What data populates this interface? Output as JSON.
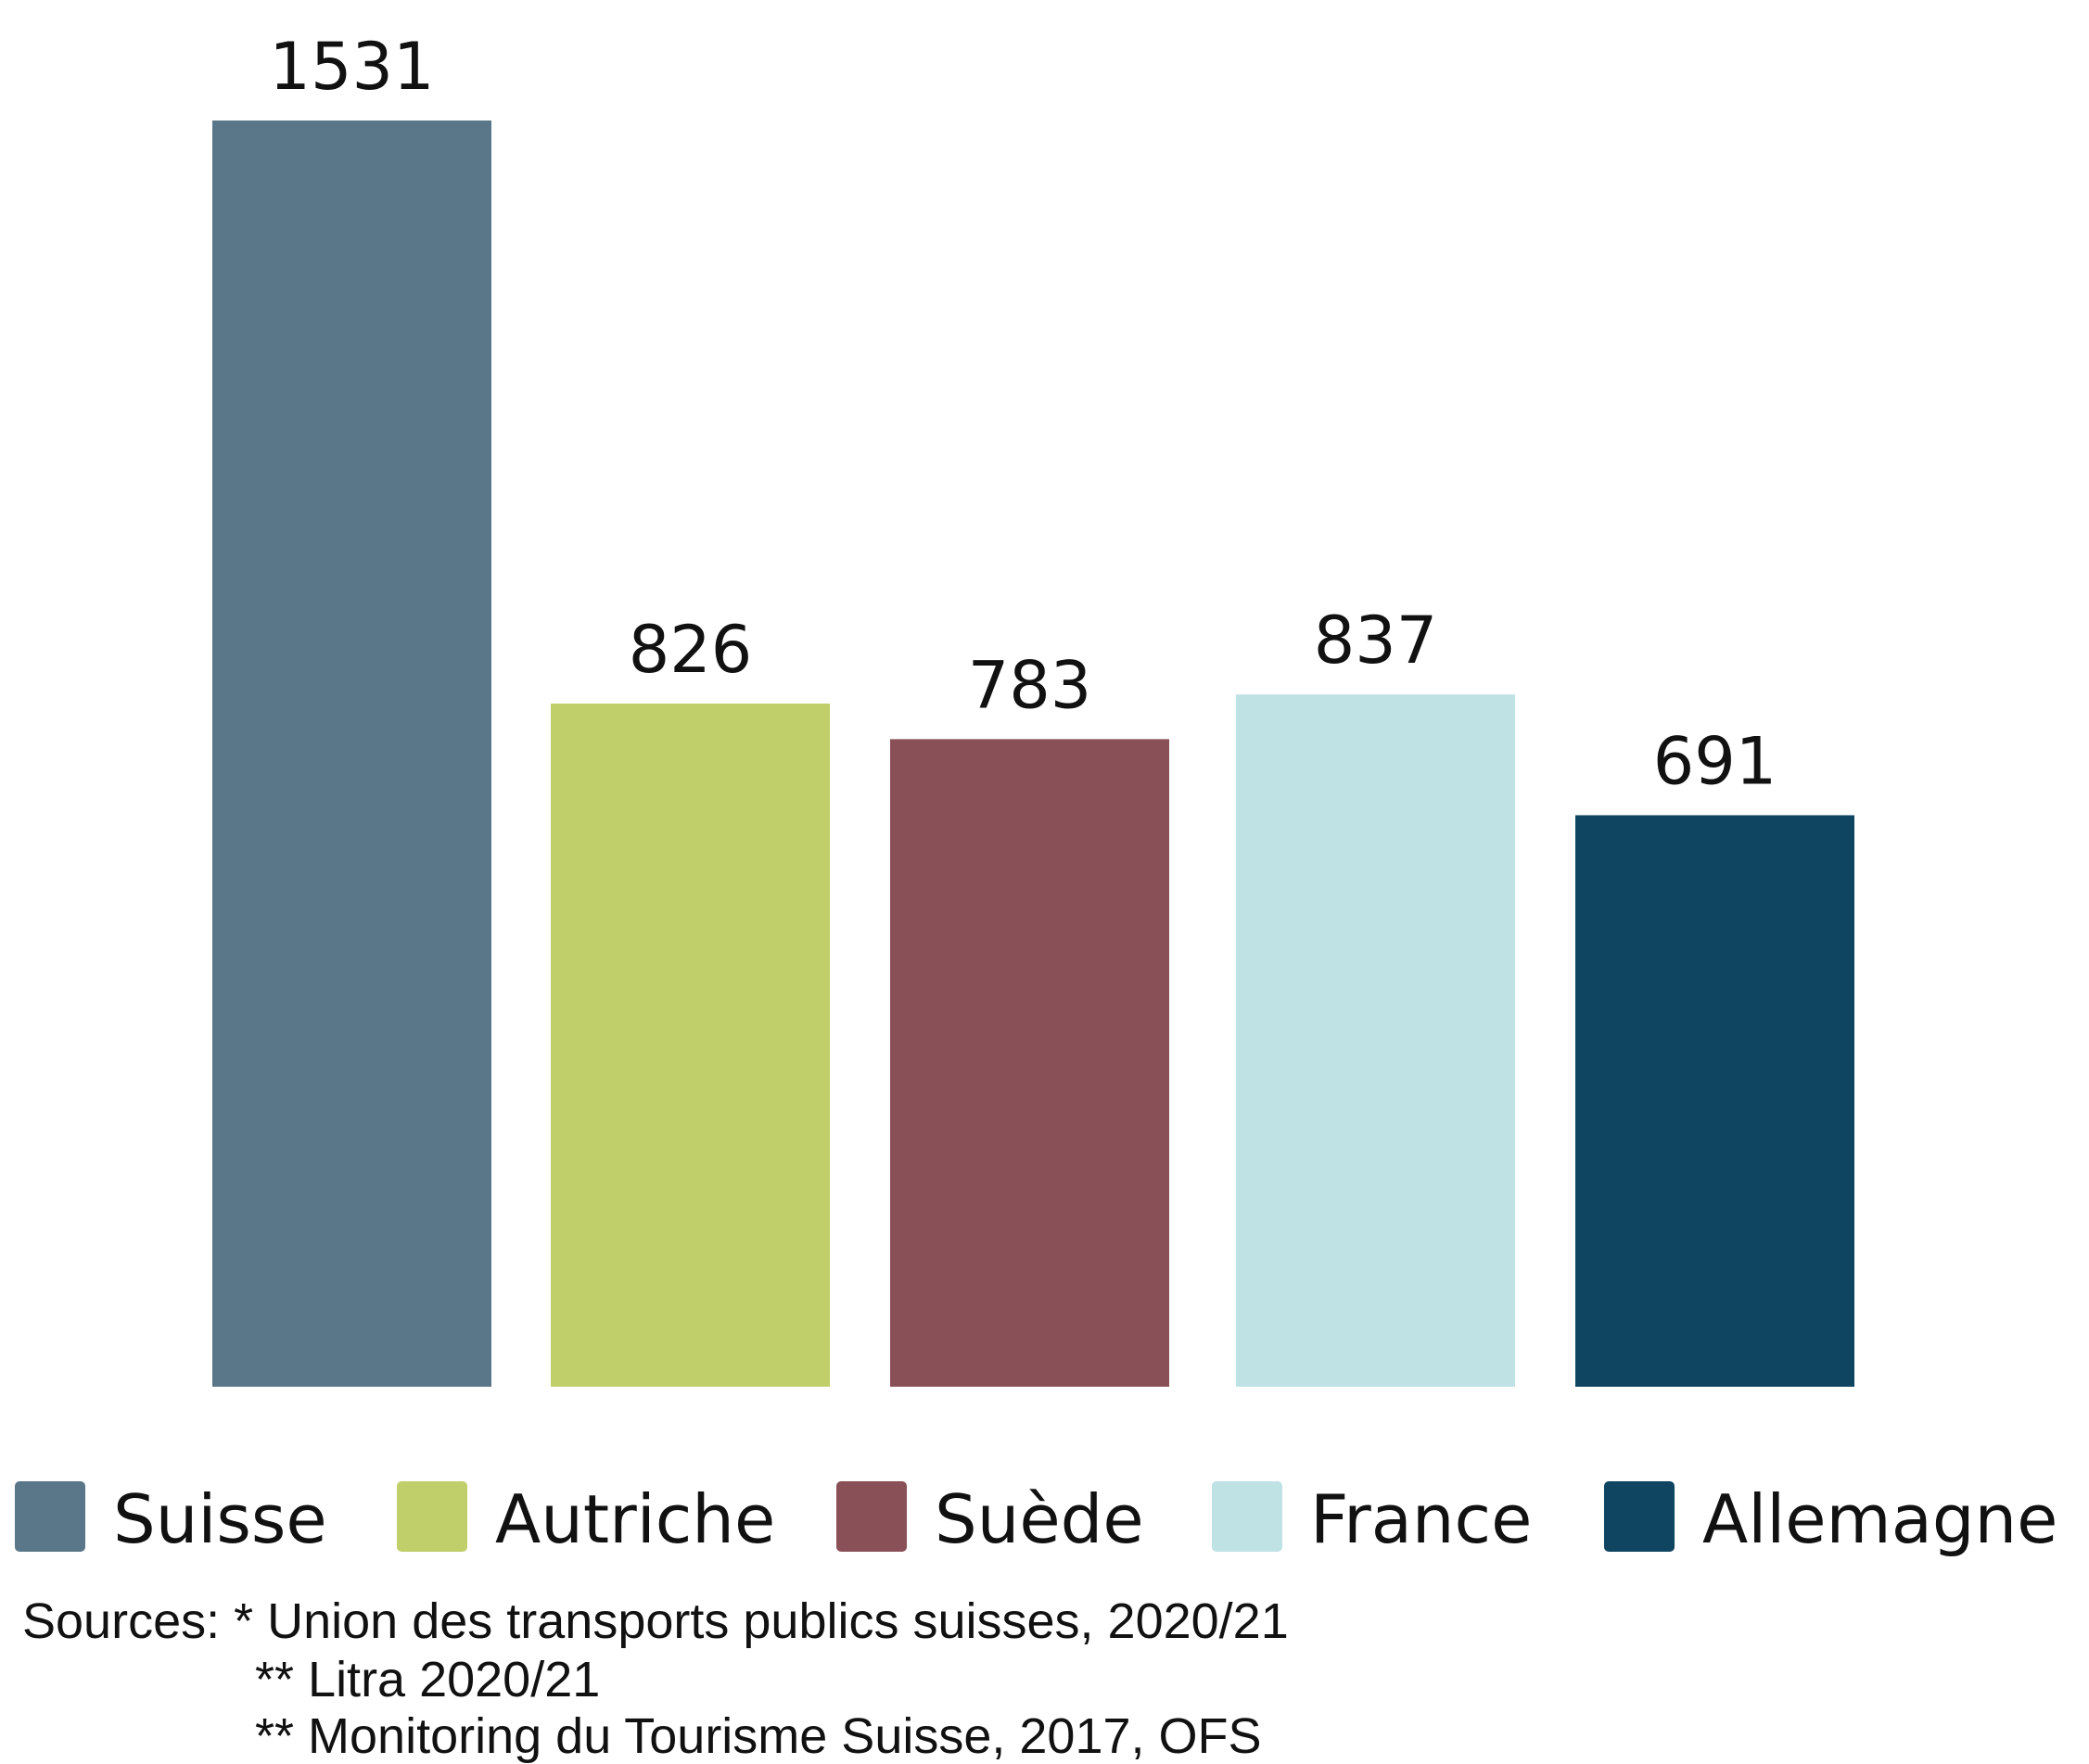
{
  "chart_data": {
    "type": "bar",
    "categories": [
      "Suisse",
      "Autriche",
      "Suède",
      "France",
      "Allemagne"
    ],
    "values": [
      1531,
      826,
      783,
      837,
      691
    ],
    "colors": [
      "#5a7789",
      "#c1cf6a",
      "#8a5058",
      "#bfe2e5",
      "#0f4560"
    ],
    "title": "",
    "xlabel": "",
    "ylabel": "",
    "ylim": [
      0,
      1531
    ],
    "grid": false,
    "legend_position": "bottom"
  },
  "sources": {
    "lines": [
      "Sources: * Union des transports publics suisses, 2020/21",
      "** Litra 2020/21",
      "** Monitoring du Tourisme Suisse, 2017, OFS"
    ]
  }
}
